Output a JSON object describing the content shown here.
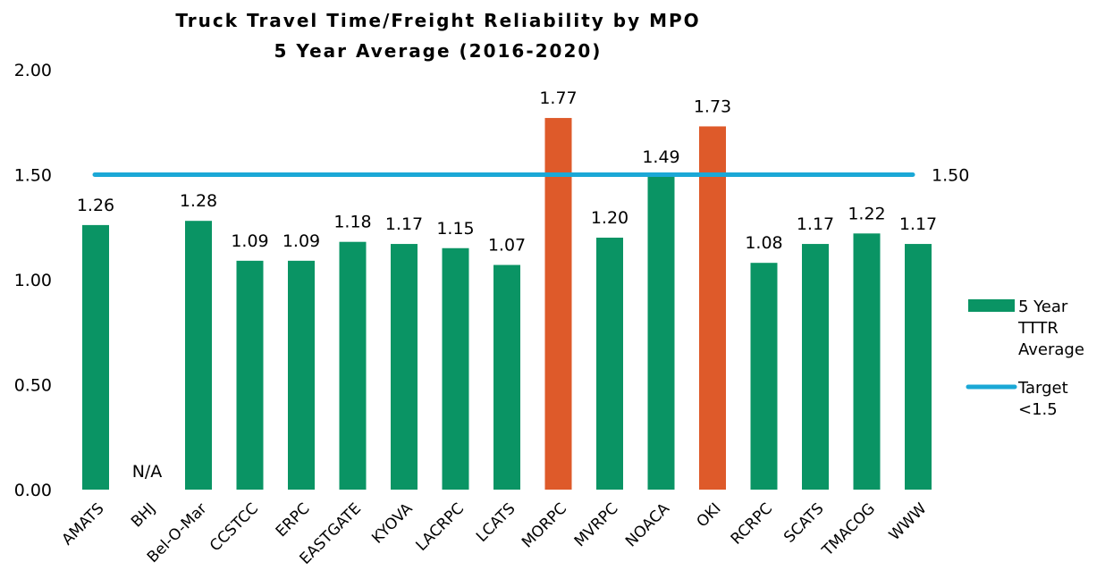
{
  "chart_data": {
    "type": "bar",
    "title": "Truck Travel Time/Freight Reliability by MPO",
    "subtitle": "5 Year Average (2016-2020)",
    "categories": [
      "AMATS",
      "BHJ",
      "Bel-O-Mar",
      "CCSTCC",
      "ERPC",
      "EASTGATE",
      "KYOVA",
      "LACRPC",
      "LCATS",
      "MORPC",
      "MVRPC",
      "NOACA",
      "OKI",
      "RCRPC",
      "SCATS",
      "TMACOG",
      "WWW"
    ],
    "series": [
      {
        "name": "5 Year TTTR Average",
        "values": [
          1.26,
          null,
          1.28,
          1.09,
          1.09,
          1.18,
          1.17,
          1.15,
          1.07,
          1.77,
          1.2,
          1.49,
          1.73,
          1.08,
          1.17,
          1.22,
          1.17
        ],
        "labels": [
          "1.26",
          "N/A",
          "1.28",
          "1.09",
          "1.09",
          "1.18",
          "1.17",
          "1.15",
          "1.07",
          "1.77",
          "1.20",
          "1.49",
          "1.73",
          "1.08",
          "1.17",
          "1.22",
          "1.17"
        ],
        "color": "#0a9464",
        "highlight_color": "#de5a2a",
        "highlight_categories": [
          "MORPC",
          "OKI"
        ]
      }
    ],
    "target": {
      "name": "Target <1.5",
      "value": 1.5,
      "label": "1.50",
      "color": "#1ba8d6"
    },
    "legend_lines": {
      "bar": [
        "5 Year",
        "TTTR",
        "Average"
      ],
      "line": [
        "Target",
        "<1.5"
      ]
    },
    "ylim": [
      0,
      2
    ],
    "yticks": [
      "0.00",
      "0.50",
      "1.00",
      "1.50",
      "2.00"
    ],
    "ytick_values": [
      0,
      0.5,
      1,
      1.5,
      2
    ],
    "grid": false,
    "legend_position": "right"
  }
}
